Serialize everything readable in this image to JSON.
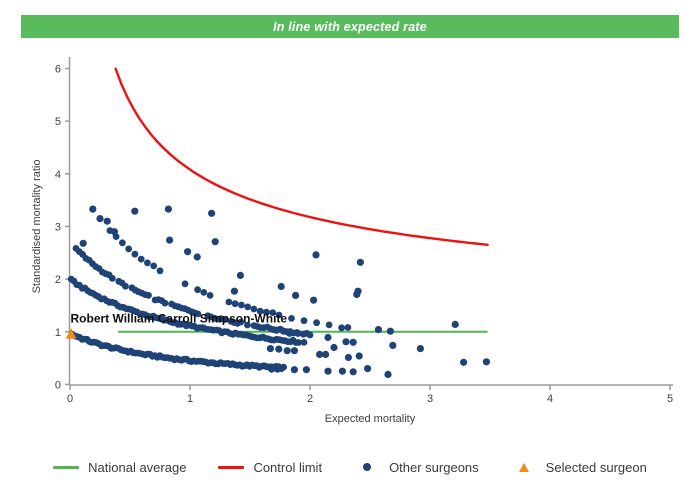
{
  "banner": {
    "text": "In line with expected rate",
    "bg_color": "#5aba5e",
    "text_color": "#ffffff"
  },
  "chart_data": {
    "type": "scatter",
    "xlabel": "Expected mortality",
    "ylabel": "Standardised mortality ratio",
    "xlim": [
      0,
      5
    ],
    "ylim": [
      0,
      6
    ],
    "x_ticks": [
      0,
      1,
      2,
      3,
      4,
      5
    ],
    "y_ticks": [
      0,
      1,
      2,
      3,
      4,
      5,
      6
    ],
    "grid": false,
    "colors": {
      "other_surgeons": "#1f4377",
      "control_limit": "#ed1111",
      "national_average": "#52b552",
      "selected_surgeon": "#f08b1d",
      "axis": "#9b9b9b",
      "tick_text": "#3f3f3f",
      "name_label": "#0f0f0f"
    },
    "national_average_line": {
      "y": 1,
      "x_start": 0.4,
      "x_end": 3.48
    },
    "control_limit_curve": {
      "formula": "smr = 1 + 3.08 / sqrt(expected)",
      "base": 1,
      "coef": 3.08,
      "x_start": 0.38,
      "x_end": 3.48
    },
    "selected_surgeon_point": {
      "name": "Robert William Carroll Simpson-White",
      "x": 0.01,
      "y": 0.95,
      "label_x": 0.0,
      "label_y": 1.25
    },
    "other_surgeon_bands": [
      {
        "deaths_curve": 1,
        "smr_at_0": 0.97,
        "falloff_exp": 1.1,
        "x_start": 0.02,
        "x_end": 1.78,
        "count": 88,
        "gap_fraction": 0.0
      },
      {
        "deaths_curve": 2,
        "smr_at_0": 2.0,
        "falloff_exp": 0.85,
        "x_start": 0.01,
        "x_end": 1.95,
        "count": 86,
        "gap_fraction": 0.04
      },
      {
        "deaths_curve": 3,
        "smr_at_0": 2.7,
        "falloff_exp": 0.95,
        "x_start": 0.05,
        "x_end": 2.0,
        "count": 72,
        "gap_fraction": 0.16
      },
      {
        "deaths_curve": 4,
        "smr_at_0": 4.0,
        "falloff_exp": 1.1,
        "x_start": 0.28,
        "x_end": 2.42,
        "count": 42,
        "gap_fraction": 0.36
      }
    ],
    "other_surgeon_points": [
      [
        0.11,
        2.68
      ],
      [
        0.19,
        3.33
      ],
      [
        0.25,
        3.15
      ],
      [
        0.31,
        3.1
      ],
      [
        0.37,
        2.9
      ],
      [
        0.54,
        3.29
      ],
      [
        0.82,
        3.33
      ],
      [
        1.18,
        3.25
      ],
      [
        0.83,
        2.74
      ],
      [
        1.21,
        2.71
      ],
      [
        0.98,
        2.52
      ],
      [
        1.06,
        2.42
      ],
      [
        1.42,
        2.07
      ],
      [
        1.37,
        1.77
      ],
      [
        1.76,
        1.86
      ],
      [
        2.05,
        2.46
      ],
      [
        2.42,
        2.32
      ],
      [
        2.4,
        1.77
      ],
      [
        1.88,
        1.69
      ],
      [
        2.03,
        1.6
      ],
      [
        2.39,
        1.71
      ],
      [
        1.72,
        1.03
      ],
      [
        1.78,
        1.01
      ],
      [
        1.83,
        0.97
      ],
      [
        1.9,
        0.97
      ],
      [
        2.15,
        0.89
      ],
      [
        2.3,
        0.81
      ],
      [
        2.36,
        0.8
      ],
      [
        2.57,
        1.04
      ],
      [
        2.67,
        1.01
      ],
      [
        3.21,
        1.14
      ],
      [
        1.67,
        0.68
      ],
      [
        1.74,
        0.67
      ],
      [
        1.81,
        0.64
      ],
      [
        1.87,
        0.64
      ],
      [
        2.08,
        0.57
      ],
      [
        2.13,
        0.57
      ],
      [
        2.32,
        0.51
      ],
      [
        2.41,
        0.54
      ],
      [
        2.69,
        0.74
      ],
      [
        2.92,
        0.68
      ],
      [
        3.28,
        0.42
      ],
      [
        1.68,
        0.29
      ],
      [
        1.73,
        0.29
      ],
      [
        1.87,
        0.28
      ],
      [
        1.97,
        0.28
      ],
      [
        2.15,
        0.25
      ],
      [
        2.27,
        0.25
      ],
      [
        2.36,
        0.24
      ],
      [
        2.65,
        0.19
      ],
      [
        2.2,
        0.7
      ],
      [
        2.48,
        0.3
      ],
      [
        3.47,
        0.43
      ]
    ]
  },
  "legend": {
    "items": [
      {
        "label": "National average",
        "swatch": "line",
        "color": "#52b552"
      },
      {
        "label": "Control limit",
        "swatch": "line",
        "color": "#ed1111"
      },
      {
        "label": "Other surgeons",
        "swatch": "dot",
        "color": "#1f4377"
      },
      {
        "label": "Selected surgeon",
        "swatch": "triangle",
        "color": "#f08b1d"
      }
    ]
  }
}
